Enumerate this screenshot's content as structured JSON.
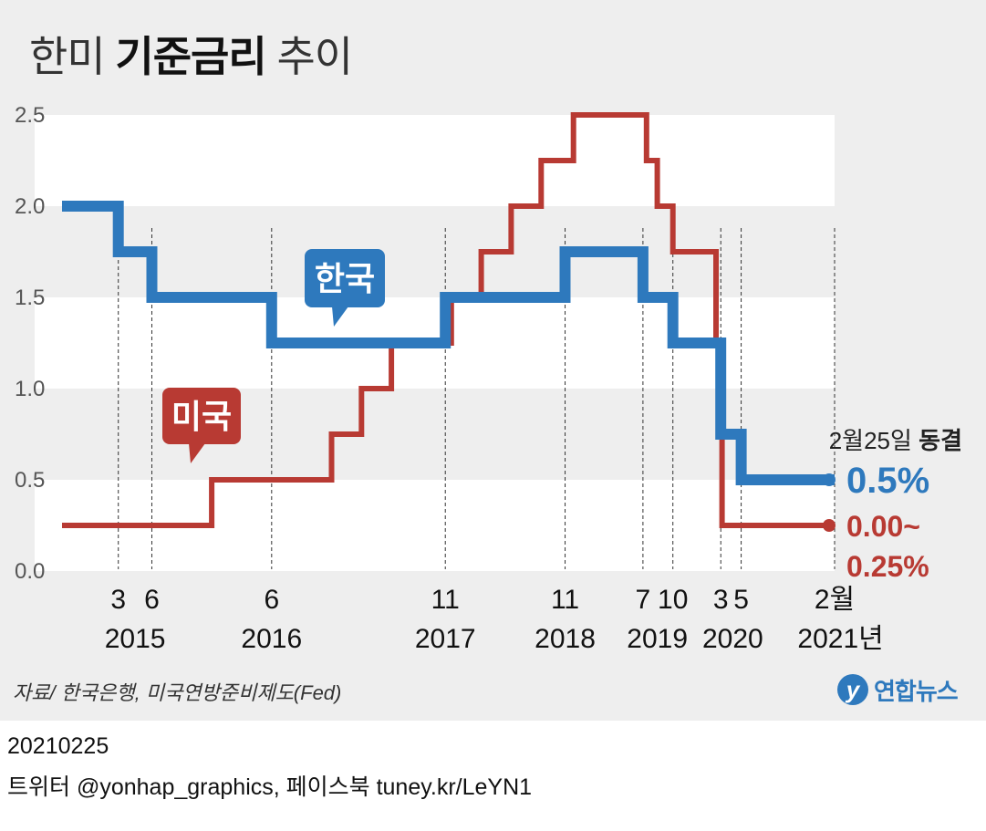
{
  "title": {
    "prefix": "한미 ",
    "bold": "기준금리",
    "suffix": " 추이"
  },
  "source": "자료/ 한국은행, 미국연방준비제도(Fed)",
  "logo": {
    "text": "연합뉴스",
    "mark": "y"
  },
  "footer": {
    "date": "20210225",
    "social": "트위터 @yonhap_graphics, 페이스북 tuney.kr/LeYN1"
  },
  "colors": {
    "korea": "#2e79bd",
    "us": "#b83a33",
    "band": "#ffffff",
    "background": "#eeeeee"
  },
  "chart_data": {
    "type": "line",
    "step": true,
    "title": "한미 기준금리 추이",
    "ylim": [
      0,
      2.5
    ],
    "yticks": [
      "0.0",
      "0.5",
      "1.0",
      "1.5",
      "2.0",
      "2.5"
    ],
    "xlim": [
      2014.7,
      2021.15
    ],
    "series": [
      {
        "name": "한국",
        "label": "한국",
        "color": "#2e79bd",
        "points": [
          [
            2014.7,
            2.0
          ],
          [
            2015.17,
            1.75
          ],
          [
            2015.45,
            1.5
          ],
          [
            2016.45,
            1.25
          ],
          [
            2017.9,
            1.5
          ],
          [
            2018.9,
            1.75
          ],
          [
            2019.55,
            1.5
          ],
          [
            2019.8,
            1.25
          ],
          [
            2020.2,
            0.75
          ],
          [
            2020.37,
            0.5
          ],
          [
            2021.15,
            0.5
          ]
        ]
      },
      {
        "name": "미국",
        "label": "미국",
        "color": "#b83a33",
        "points": [
          [
            2014.7,
            0.25
          ],
          [
            2015.95,
            0.5
          ],
          [
            2016.95,
            0.75
          ],
          [
            2017.2,
            1.0
          ],
          [
            2017.45,
            1.25
          ],
          [
            2017.95,
            1.5
          ],
          [
            2018.2,
            1.75
          ],
          [
            2018.45,
            2.0
          ],
          [
            2018.7,
            2.25
          ],
          [
            2018.97,
            2.5
          ],
          [
            2019.58,
            2.25
          ],
          [
            2019.67,
            2.0
          ],
          [
            2019.8,
            1.75
          ],
          [
            2020.16,
            1.25
          ],
          [
            2020.21,
            0.25
          ],
          [
            2021.15,
            0.25
          ]
        ]
      }
    ],
    "event_ticks": [
      {
        "label": "3",
        "x": 2015.17
      },
      {
        "label": "6",
        "x": 2015.45
      },
      {
        "label": "6",
        "x": 2016.45
      },
      {
        "label": "11",
        "x": 2017.9
      },
      {
        "label": "11",
        "x": 2018.9
      },
      {
        "label": "7",
        "x": 2019.55
      },
      {
        "label": "10",
        "x": 2019.8
      },
      {
        "label": "3",
        "x": 2020.2
      },
      {
        "label": "5",
        "x": 2020.37
      },
      {
        "label": "2월",
        "x": 2021.15
      }
    ],
    "year_labels": [
      {
        "label": "2015",
        "x": 2015.31
      },
      {
        "label": "2016",
        "x": 2016.45
      },
      {
        "label": "2017",
        "x": 2017.9
      },
      {
        "label": "2018",
        "x": 2018.9
      },
      {
        "label": "2019",
        "x": 2019.67
      },
      {
        "label": "2020",
        "x": 2020.3
      },
      {
        "label": "2021년",
        "x": 2021.2
      }
    ],
    "annotation": {
      "prefix": "2월25일 ",
      "bold": "동결"
    },
    "end_labels": {
      "korea": "0.5%",
      "us_line1": "0.00~",
      "us_line2": "0.25%"
    }
  }
}
